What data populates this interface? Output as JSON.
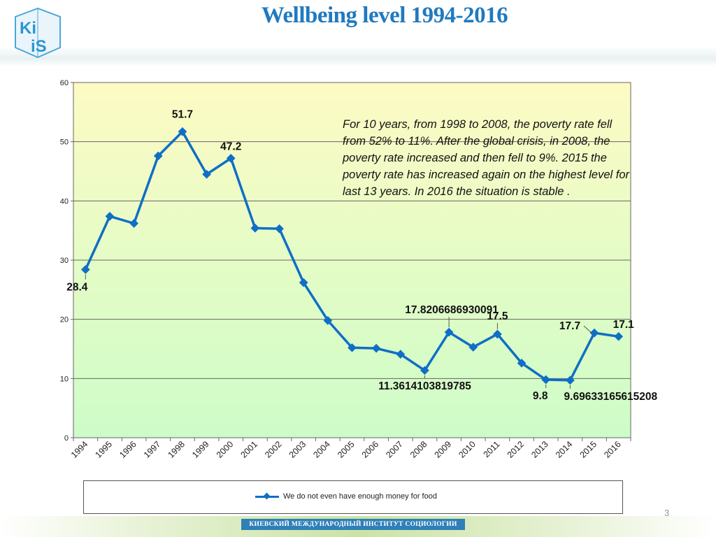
{
  "slide": {
    "title": "Wellbeing level 1994-2016",
    "page_number": "3",
    "footer": "КИЕВСКИЙ МЕЖДУНАРОДНЫЙ ИНСТИТУТ СОЦИОЛОГИИ",
    "logo_text": [
      "Ki",
      "iS"
    ],
    "annotation": "For 10 years, from 1998 to 2008, the poverty rate fell from 52% to 11%.  After the global crisis, in 2008, the poverty rate increased and then fell to 9%. 2015 the poverty rate has increased again on the highest level for last 13 years. In 2016 the situation is stable ."
  },
  "colors": {
    "title": "#1f7ac0",
    "series": "#0f6fc6",
    "plot_top": "#fdfbc4",
    "plot_bottom": "#cdfcc8"
  },
  "chart_data": {
    "type": "line",
    "title": "",
    "xlabel": "",
    "ylabel": "",
    "ylim": [
      0,
      60
    ],
    "yticks": [
      0,
      10,
      20,
      30,
      40,
      50,
      60
    ],
    "grid": true,
    "legend_placement": "bottom",
    "categories": [
      "1994",
      "1995",
      "1996",
      "1997",
      "1998",
      "1999",
      "2000",
      "2001",
      "2002",
      "2003",
      "2004",
      "2005",
      "2006",
      "2007",
      "2008",
      "2009",
      "2010",
      "2011",
      "2012",
      "2013",
      "2014",
      "2015",
      "2016"
    ],
    "series": [
      {
        "name": "We do not even have enough money for food",
        "values": [
          28.4,
          37.4,
          36.2,
          47.6,
          51.7,
          44.5,
          47.2,
          35.4,
          35.3,
          26.2,
          19.8,
          15.2,
          15.1,
          14.1,
          11.3614103819785,
          17.8206686930091,
          15.3,
          17.5,
          12.6,
          9.8,
          9.69633165615208,
          17.7,
          17.1
        ]
      }
    ],
    "data_labels": [
      {
        "index": 0,
        "text": "28.4"
      },
      {
        "index": 4,
        "text": "51.7"
      },
      {
        "index": 6,
        "text": "47.2"
      },
      {
        "index": 14,
        "text": "11.3614103819785"
      },
      {
        "index": 15,
        "text": "17.8206686930091"
      },
      {
        "index": 17,
        "text": "17.5"
      },
      {
        "index": 19,
        "text": "9.8"
      },
      {
        "index": 20,
        "text": "9.69633165615208"
      },
      {
        "index": 21,
        "text": "17.7"
      },
      {
        "index": 22,
        "text": "17.1"
      }
    ]
  }
}
